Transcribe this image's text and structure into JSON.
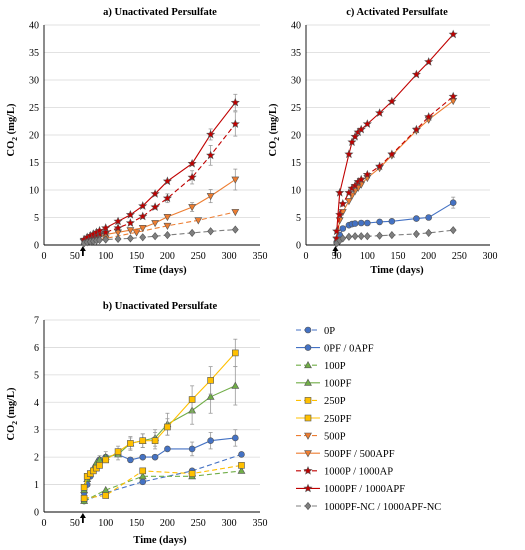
{
  "chart_data": [
    {
      "id": "a",
      "type": "line",
      "title": "a) Unactivated Persulfate",
      "xlabel": "Time (days)",
      "ylabel": "CO2 (mg/L)",
      "xlim": [
        0,
        350
      ],
      "ylim": [
        0,
        40
      ],
      "xticks": [
        0,
        50,
        100,
        150,
        200,
        250,
        300,
        350
      ],
      "yticks": [
        0,
        5,
        10,
        15,
        20,
        25,
        30,
        35,
        40
      ],
      "arrow_x": 63,
      "series": [
        {
          "name": "500P",
          "x": [
            65,
            80,
            100,
            150,
            200,
            250,
            310
          ],
          "y": [
            0.5,
            0.8,
            1.2,
            2.3,
            3.5,
            4.5,
            6.0
          ]
        },
        {
          "name": "500PF / 500APF",
          "x": [
            65,
            70,
            75,
            80,
            85,
            90,
            100,
            120,
            140,
            160,
            180,
            200,
            240,
            270,
            310
          ],
          "y": [
            0.6,
            0.9,
            1.1,
            1.3,
            1.5,
            1.7,
            1.9,
            2.3,
            2.7,
            3.1,
            4.0,
            5.1,
            6.9,
            8.9,
            11.9
          ],
          "err": [
            0,
            0,
            0,
            0,
            0,
            0,
            0,
            0,
            0,
            0,
            0,
            0,
            0.8,
            1.2,
            1.9
          ]
        },
        {
          "name": "1000P / 1000AP",
          "x": [
            65,
            70,
            75,
            80,
            85,
            90,
            100,
            120,
            140,
            160,
            180,
            200,
            240,
            270,
            310
          ],
          "y": [
            0.8,
            1.1,
            1.4,
            1.6,
            1.8,
            2.0,
            2.3,
            3.1,
            4.0,
            5.2,
            6.9,
            8.5,
            12.3,
            16.3,
            22.0
          ],
          "err": [
            0,
            0,
            0,
            0,
            0,
            0,
            0,
            0,
            0,
            0,
            0,
            0.8,
            1.2,
            1.8,
            2.2
          ]
        },
        {
          "name": "1000PF / 1000APF",
          "x": [
            65,
            70,
            75,
            80,
            85,
            90,
            100,
            120,
            140,
            160,
            180,
            200,
            240,
            270,
            310
          ],
          "y": [
            1.0,
            1.4,
            1.7,
            2.0,
            2.3,
            2.6,
            3.1,
            4.3,
            5.5,
            7.1,
            9.3,
            11.6,
            14.8,
            20.1,
            25.9
          ],
          "err": [
            0,
            0,
            0,
            0,
            0,
            0,
            0,
            0,
            0,
            0,
            0,
            0,
            0,
            1.0,
            1.5
          ]
        },
        {
          "name": "1000PF-NC / 1000APF-NC",
          "x": [
            65,
            70,
            75,
            80,
            85,
            90,
            100,
            120,
            140,
            160,
            180,
            200,
            240,
            270,
            310
          ],
          "y": [
            0.3,
            0.5,
            0.6,
            0.7,
            0.8,
            0.9,
            1.0,
            1.1,
            1.2,
            1.4,
            1.6,
            1.8,
            2.2,
            2.5,
            2.8
          ]
        }
      ]
    },
    {
      "id": "c",
      "type": "line",
      "title": "c) Activated Persulfate",
      "xlabel": "Time (days)",
      "ylabel": "CO2 (mg/L)",
      "xlim": [
        0,
        300
      ],
      "ylim": [
        0,
        40
      ],
      "xticks": [
        0,
        50,
        100,
        150,
        200,
        250,
        300
      ],
      "yticks": [
        0,
        5,
        10,
        15,
        20,
        25,
        30,
        35,
        40
      ],
      "arrow_x": 48,
      "series": [
        {
          "name": "0PF / 0APF",
          "x": [
            50,
            55,
            60,
            70,
            75,
            80,
            90,
            100,
            120,
            140,
            180,
            200,
            240
          ],
          "y": [
            0.5,
            1.8,
            3.0,
            3.6,
            3.8,
            3.9,
            4.0,
            4.0,
            4.2,
            4.3,
            4.8,
            5.0,
            7.7
          ],
          "err": [
            0,
            0,
            0,
            0,
            0,
            0,
            0,
            0,
            0,
            0,
            0,
            0,
            1.0
          ]
        },
        {
          "name": "500PF / 500APF",
          "x": [
            50,
            55,
            60,
            70,
            75,
            80,
            85,
            90,
            100,
            120,
            140,
            180,
            200,
            240
          ],
          "y": [
            1.0,
            4.5,
            6.0,
            8.0,
            9.0,
            9.8,
            10.4,
            11.0,
            12.2,
            14.0,
            16.3,
            20.8,
            22.8,
            26.2
          ]
        },
        {
          "name": "1000P / 1000AP",
          "x": [
            50,
            55,
            60,
            70,
            75,
            80,
            85,
            90,
            100,
            120,
            140,
            180,
            200,
            240
          ],
          "y": [
            1.2,
            5.5,
            7.5,
            9.5,
            10.3,
            10.8,
            11.5,
            11.9,
            12.8,
            14.3,
            16.5,
            21.0,
            23.3,
            27.0
          ]
        },
        {
          "name": "1000PF / 1000APF",
          "x": [
            50,
            55,
            70,
            75,
            80,
            85,
            90,
            100,
            120,
            140,
            180,
            200,
            240
          ],
          "y": [
            2.5,
            9.5,
            16.5,
            18.7,
            19.7,
            20.5,
            21.0,
            22.0,
            24.0,
            26.1,
            31.0,
            33.3,
            38.3
          ]
        },
        {
          "name": "1000PF-NC / 1000APF-NC",
          "x": [
            50,
            55,
            60,
            70,
            80,
            90,
            100,
            120,
            140,
            180,
            200,
            240
          ],
          "y": [
            0.3,
            0.8,
            1.2,
            1.5,
            1.6,
            1.6,
            1.6,
            1.7,
            1.8,
            2.0,
            2.2,
            2.7
          ]
        }
      ]
    },
    {
      "id": "b",
      "type": "line",
      "title": "b) Unactivated Persulfate",
      "xlabel": "Time (days)",
      "ylabel": "CO2 (mg/L)",
      "xlim": [
        0,
        350
      ],
      "ylim": [
        0,
        7
      ],
      "xticks": [
        0,
        50,
        100,
        150,
        200,
        250,
        300,
        350
      ],
      "yticks": [
        0,
        1,
        2,
        3,
        4,
        5,
        6,
        7
      ],
      "arrow_x": 63,
      "series": [
        {
          "name": "0P",
          "x": [
            65,
            100,
            160,
            240,
            320
          ],
          "y": [
            0.4,
            0.7,
            1.1,
            1.5,
            2.1
          ]
        },
        {
          "name": "0PF / 0APF",
          "x": [
            65,
            70,
            75,
            80,
            85,
            90,
            100,
            120,
            140,
            160,
            180,
            200,
            240,
            270,
            310
          ],
          "y": [
            0.7,
            1.0,
            1.3,
            1.5,
            1.7,
            1.9,
            2.0,
            2.1,
            1.9,
            2.0,
            2.0,
            2.3,
            2.3,
            2.6,
            2.7
          ],
          "err": [
            0,
            0,
            0,
            0,
            0,
            0,
            0,
            0,
            0,
            0,
            0,
            0,
            0.25,
            0.3,
            0.3
          ]
        },
        {
          "name": "100P",
          "x": [
            65,
            100,
            160,
            240,
            320
          ],
          "y": [
            0.4,
            0.8,
            1.3,
            1.3,
            1.5
          ]
        },
        {
          "name": "100PF",
          "x": [
            65,
            70,
            75,
            80,
            85,
            90,
            100,
            120,
            140,
            160,
            180,
            200,
            240,
            270,
            310
          ],
          "y": [
            0.8,
            1.2,
            1.4,
            1.6,
            1.8,
            1.9,
            2.0,
            2.1,
            2.5,
            2.6,
            2.7,
            3.2,
            3.7,
            4.2,
            4.6
          ],
          "err": [
            0,
            0,
            0,
            0,
            0,
            0.15,
            0.2,
            0.2,
            0.2,
            0.25,
            0.3,
            0.4,
            0.5,
            0.6,
            0.7
          ]
        },
        {
          "name": "250P",
          "x": [
            65,
            100,
            160,
            240,
            320
          ],
          "y": [
            0.5,
            0.6,
            1.5,
            1.4,
            1.7
          ]
        },
        {
          "name": "250PF",
          "x": [
            65,
            70,
            75,
            80,
            85,
            90,
            100,
            120,
            140,
            160,
            180,
            200,
            240,
            270,
            310
          ],
          "y": [
            0.9,
            1.3,
            1.4,
            1.5,
            1.6,
            1.7,
            1.9,
            2.2,
            2.5,
            2.6,
            2.6,
            3.1,
            4.1,
            4.8,
            5.8
          ],
          "err": [
            0,
            0,
            0,
            0,
            0,
            0,
            0,
            0.2,
            0.25,
            0.25,
            0.3,
            0.3,
            0.5,
            0.5,
            0.5
          ]
        }
      ]
    }
  ],
  "legend": [
    {
      "name": "0P",
      "color": "#4472C4",
      "marker": "circle",
      "dashed": true
    },
    {
      "name": "0PF / 0APF",
      "color": "#4472C4",
      "marker": "circle",
      "dashed": false
    },
    {
      "name": "100P",
      "color": "#70AD47",
      "marker": "triangle",
      "dashed": true
    },
    {
      "name": "100PF",
      "color": "#70AD47",
      "marker": "triangle",
      "dashed": false
    },
    {
      "name": "250P",
      "color": "#FFC000",
      "marker": "square",
      "dashed": true
    },
    {
      "name": "250PF",
      "color": "#FFC000",
      "marker": "square",
      "dashed": false
    },
    {
      "name": "500P",
      "color": "#ED7D31",
      "marker": "triangle-down",
      "dashed": true
    },
    {
      "name": "500PF / 500APF",
      "color": "#ED7D31",
      "marker": "triangle-down",
      "dashed": false
    },
    {
      "name": "1000P / 1000AP",
      "color": "#C00000",
      "marker": "star",
      "dashed": true
    },
    {
      "name": "1000PF / 1000APF",
      "color": "#C00000",
      "marker": "star",
      "dashed": false
    },
    {
      "name": "1000PF-NC / 1000APF-NC",
      "color": "#7F7F7F",
      "marker": "diamond",
      "dashed": true
    }
  ]
}
